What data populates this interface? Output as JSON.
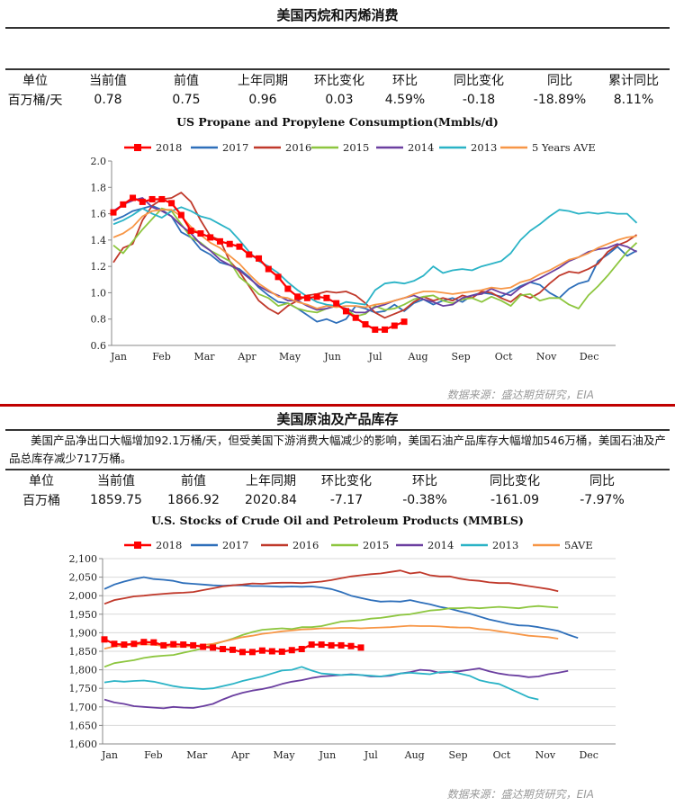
{
  "section1": {
    "title": "美国丙烷和丙烯消费",
    "table": {
      "headers": [
        "单位",
        "当前值",
        "前值",
        "上年同期",
        "环比变化",
        "环比",
        "同比变化",
        "同比",
        "累计同比"
      ],
      "values": [
        "百万桶/天",
        "0.78",
        "0.75",
        "0.96",
        "0.03",
        "4.59%",
        "-0.18",
        "-18.89%",
        "8.11%"
      ]
    },
    "source": "数据来源：盛达期货研究，EIA"
  },
  "section2": {
    "title": "美国原油及产品库存",
    "note": "美国产品净出口大幅增加92.1万桶/天，但受美国下游消费大幅减少的影响，美国石油产品库存大幅增加546万桶，美国石油及产品总库存减少717万桶。",
    "table": {
      "headers": [
        "单位",
        "当前值",
        "前值",
        "上年同期",
        "环比变化",
        "环比",
        "同比变化",
        "同比"
      ],
      "values": [
        "百万桶",
        "1859.75",
        "1866.92",
        "2020.84",
        "-7.17",
        "-0.38%",
        "-161.09",
        "-7.97%"
      ]
    },
    "source": "数据来源：盛达期货研究，EIA"
  },
  "colors": {
    "s2018": "#ff0000",
    "s2017": "#2e6fba",
    "s2016": "#c0392b",
    "s2015": "#8dc63f",
    "s2014": "#6b3fa0",
    "s2013": "#2ab3c6",
    "s5y": "#f79646",
    "accent_rule": "#c00000"
  },
  "chart_data": [
    {
      "type": "line",
      "title": "US Propane and Propylene Consumption(Mmbls/d)",
      "x_ticks": [
        "Jan",
        "Feb",
        "Mar",
        "Apr",
        "May",
        "Jun",
        "Jul",
        "Aug",
        "Sep",
        "Oct",
        "Nov",
        "Dec"
      ],
      "ylim": [
        0.6,
        2.0
      ],
      "y_ticks": [
        "2.0",
        "1.8",
        "1.6",
        "1.4",
        "1.2",
        "1.0",
        "0.8",
        "0.6"
      ],
      "y_tick_values": [
        2.0,
        1.8,
        1.6,
        1.4,
        1.2,
        1.0,
        0.8,
        0.6
      ],
      "grid": false,
      "legend": "top",
      "series": [
        {
          "name": "2018",
          "color_key": "s2018",
          "marker": "square",
          "values": [
            1.61,
            1.67,
            1.72,
            1.69,
            1.71,
            1.71,
            1.68,
            1.59,
            1.47,
            1.45,
            1.42,
            1.39,
            1.37,
            1.35,
            1.29,
            1.26,
            1.18,
            1.12,
            1.03,
            0.97,
            0.96,
            0.97,
            0.96,
            0.92,
            0.86,
            0.81,
            0.76,
            0.72,
            0.72,
            0.75,
            0.78
          ]
        },
        {
          "name": "2017",
          "color_key": "s2017",
          "values": [
            1.55,
            1.58,
            1.62,
            1.64,
            1.66,
            1.63,
            1.58,
            1.46,
            1.42,
            1.33,
            1.29,
            1.23,
            1.21,
            1.18,
            1.12,
            1.04,
            0.98,
            0.93,
            0.92,
            0.88,
            0.83,
            0.78,
            0.8,
            0.77,
            0.8,
            0.9,
            0.88,
            0.85,
            0.86,
            0.91,
            0.86,
            0.92,
            0.95,
            0.91,
            0.94,
            0.96,
            0.93,
            0.98,
            1.0,
            0.99,
            0.97,
            1.01,
            1.05,
            1.08,
            1.06,
            1.0,
            0.96,
            1.03,
            1.07,
            1.09,
            1.24,
            1.29,
            1.35,
            1.28,
            1.32
          ]
        },
        {
          "name": "2016",
          "color_key": "s2016",
          "values": [
            1.23,
            1.34,
            1.37,
            1.55,
            1.66,
            1.71,
            1.72,
            1.76,
            1.69,
            1.55,
            1.43,
            1.4,
            1.24,
            1.16,
            1.05,
            0.94,
            0.88,
            0.84,
            0.9,
            0.94,
            0.98,
            0.99,
            1.01,
            1.0,
            1.01,
            0.98,
            0.92,
            0.85,
            0.81,
            0.84,
            0.87,
            0.93,
            0.97,
            0.94,
            0.96,
            0.94,
            0.98,
            0.96,
            1.01,
            1.0,
            0.96,
            0.93,
            0.99,
            0.96,
            1.0,
            1.07,
            1.13,
            1.16,
            1.15,
            1.18,
            1.22,
            1.31,
            1.36,
            1.39,
            1.44
          ]
        },
        {
          "name": "2015",
          "color_key": "s2015",
          "values": [
            1.36,
            1.3,
            1.39,
            1.48,
            1.56,
            1.64,
            1.62,
            1.52,
            1.42,
            1.38,
            1.32,
            1.28,
            1.24,
            1.12,
            1.06,
            0.99,
            0.96,
            0.9,
            0.92,
            0.88,
            0.86,
            0.85,
            0.88,
            0.9,
            0.88,
            0.82,
            0.84,
            0.9,
            0.87,
            0.88,
            0.91,
            0.95,
            0.97,
            0.98,
            0.94,
            0.92,
            0.95,
            0.96,
            0.93,
            0.97,
            0.94,
            0.9,
            0.98,
            0.99,
            0.94,
            0.96,
            0.96,
            0.91,
            0.88,
            0.98,
            1.05,
            1.13,
            1.22,
            1.31,
            1.38
          ]
        },
        {
          "name": "2014",
          "color_key": "s2014",
          "values": [
            1.62,
            1.67,
            1.7,
            1.72,
            1.65,
            1.62,
            1.58,
            1.51,
            1.45,
            1.37,
            1.32,
            1.25,
            1.21,
            1.17,
            1.11,
            1.05,
            1.01,
            0.98,
            0.94,
            0.94,
            0.9,
            0.87,
            0.88,
            0.9,
            0.88,
            0.85,
            0.85,
            0.89,
            0.91,
            0.94,
            0.96,
            0.98,
            0.95,
            0.93,
            0.9,
            0.91,
            0.96,
            0.98,
            0.99,
            1.03,
            1.0,
            0.98,
            1.04,
            1.08,
            1.11,
            1.15,
            1.19,
            1.24,
            1.27,
            1.31,
            1.33,
            1.34,
            1.37,
            1.35,
            1.31
          ]
        },
        {
          "name": "2013",
          "color_key": "s2013",
          "values": [
            1.52,
            1.55,
            1.59,
            1.64,
            1.6,
            1.57,
            1.62,
            1.65,
            1.62,
            1.58,
            1.56,
            1.52,
            1.48,
            1.4,
            1.31,
            1.24,
            1.2,
            1.15,
            1.08,
            1.02,
            0.97,
            0.93,
            0.91,
            0.9,
            0.93,
            0.92,
            0.91,
            1.02,
            1.07,
            1.08,
            1.07,
            1.09,
            1.13,
            1.2,
            1.15,
            1.17,
            1.18,
            1.17,
            1.2,
            1.22,
            1.24,
            1.3,
            1.4,
            1.47,
            1.52,
            1.58,
            1.63,
            1.62,
            1.6,
            1.61,
            1.6,
            1.61,
            1.6,
            1.6,
            1.53
          ]
        },
        {
          "name": "5 Years AVE",
          "color_key": "s5y",
          "values": [
            1.42,
            1.45,
            1.5,
            1.58,
            1.62,
            1.63,
            1.63,
            1.58,
            1.5,
            1.44,
            1.38,
            1.34,
            1.28,
            1.22,
            1.14,
            1.07,
            1.02,
            0.97,
            0.96,
            0.93,
            0.91,
            0.88,
            0.9,
            0.89,
            0.9,
            0.9,
            0.89,
            0.91,
            0.92,
            0.94,
            0.96,
            0.99,
            1.01,
            1.01,
            1.0,
            0.99,
            1.0,
            1.01,
            1.02,
            1.04,
            1.03,
            1.04,
            1.08,
            1.1,
            1.14,
            1.17,
            1.21,
            1.25,
            1.27,
            1.3,
            1.34,
            1.37,
            1.4,
            1.42,
            1.43
          ]
        }
      ]
    },
    {
      "type": "line",
      "title": "U.S.  Stocks of Crude Oil and Petroleum Products  (MMBLS)",
      "x_ticks": [
        "Jan",
        "Feb",
        "Mar",
        "Apr",
        "May",
        "Jun",
        "Jul",
        "Aug",
        "Sep",
        "Oct",
        "Nov",
        "Dec"
      ],
      "ylim": [
        1600,
        2100
      ],
      "y_ticks": [
        "2,100",
        "2,050",
        "2,000",
        "1,950",
        "1,900",
        "1,850",
        "1,800",
        "1,750",
        "1,700",
        "1,650",
        "1,600"
      ],
      "y_tick_values": [
        2100,
        2050,
        2000,
        1950,
        1900,
        1850,
        1800,
        1750,
        1700,
        1650,
        1600
      ],
      "grid": true,
      "legend": "top",
      "series": [
        {
          "name": "2018",
          "color_key": "s2018",
          "marker": "square",
          "values": [
            1882,
            1870,
            1868,
            1870,
            1875,
            1874,
            1866,
            1869,
            1868,
            1866,
            1862,
            1860,
            1856,
            1854,
            1848,
            1848,
            1852,
            1850,
            1849,
            1853,
            1856,
            1868,
            1868,
            1866,
            1866,
            1864,
            1860
          ]
        },
        {
          "name": "2017",
          "color_key": "s2017",
          "values": [
            2018,
            2030,
            2038,
            2045,
            2050,
            2045,
            2043,
            2040,
            2034,
            2032,
            2030,
            2028,
            2027,
            2028,
            2028,
            2026,
            2026,
            2025,
            2024,
            2025,
            2024,
            2025,
            2022,
            2018,
            2010,
            2000,
            1994,
            1988,
            1984,
            1985,
            1984,
            1988,
            1982,
            1977,
            1970,
            1965,
            1958,
            1952,
            1944,
            1936,
            1930,
            1924,
            1920,
            1919,
            1915,
            1910,
            1905,
            1895,
            1886
          ]
        },
        {
          "name": "2016",
          "color_key": "s2016",
          "values": [
            1978,
            1988,
            1993,
            1998,
            2000,
            2003,
            2005,
            2007,
            2008,
            2010,
            2015,
            2020,
            2025,
            2028,
            2030,
            2033,
            2032,
            2034,
            2035,
            2035,
            2034,
            2036,
            2038,
            2042,
            2047,
            2052,
            2055,
            2058,
            2060,
            2064,
            2068,
            2060,
            2063,
            2055,
            2052,
            2052,
            2046,
            2042,
            2040,
            2036,
            2034,
            2034,
            2030,
            2026,
            2022,
            2018,
            2012
          ]
        },
        {
          "name": "2015",
          "color_key": "s2015",
          "values": [
            1808,
            1818,
            1822,
            1826,
            1832,
            1836,
            1838,
            1840,
            1846,
            1852,
            1858,
            1868,
            1876,
            1884,
            1894,
            1902,
            1908,
            1910,
            1912,
            1910,
            1915,
            1915,
            1918,
            1924,
            1930,
            1932,
            1934,
            1938,
            1940,
            1944,
            1948,
            1950,
            1955,
            1960,
            1962,
            1966,
            1966,
            1968,
            1966,
            1968,
            1970,
            1968,
            1966,
            1970,
            1972,
            1970,
            1968
          ]
        },
        {
          "name": "2014",
          "color_key": "s2014",
          "values": [
            1720,
            1712,
            1708,
            1702,
            1700,
            1698,
            1696,
            1700,
            1698,
            1697,
            1702,
            1708,
            1720,
            1730,
            1738,
            1744,
            1748,
            1754,
            1762,
            1768,
            1772,
            1778,
            1782,
            1784,
            1786,
            1788,
            1786,
            1782,
            1782,
            1784,
            1790,
            1794,
            1800,
            1798,
            1792,
            1794,
            1796,
            1800,
            1804,
            1796,
            1790,
            1786,
            1784,
            1780,
            1782,
            1788,
            1792,
            1797
          ]
        },
        {
          "name": "2013",
          "color_key": "s2013",
          "values": [
            1766,
            1770,
            1768,
            1770,
            1771,
            1768,
            1762,
            1756,
            1752,
            1750,
            1748,
            1750,
            1756,
            1762,
            1770,
            1776,
            1782,
            1790,
            1798,
            1800,
            1808,
            1798,
            1790,
            1788,
            1786,
            1787,
            1786,
            1784,
            1782,
            1786,
            1790,
            1792,
            1790,
            1788,
            1794,
            1795,
            1790,
            1784,
            1772,
            1766,
            1762,
            1750,
            1738,
            1726,
            1720
          ]
        },
        {
          "name": "5AVE",
          "color_key": "s5y",
          "values": [
            1857,
            1863,
            1866,
            1868,
            1869,
            1868,
            1864,
            1862,
            1863,
            1864,
            1867,
            1870,
            1876,
            1882,
            1888,
            1892,
            1897,
            1900,
            1904,
            1906,
            1909,
            1910,
            1912,
            1912,
            1913,
            1913,
            1912,
            1913,
            1914,
            1915,
            1917,
            1919,
            1918,
            1918,
            1917,
            1915,
            1914,
            1914,
            1910,
            1908,
            1904,
            1900,
            1896,
            1892,
            1890,
            1888,
            1884
          ]
        }
      ]
    }
  ]
}
